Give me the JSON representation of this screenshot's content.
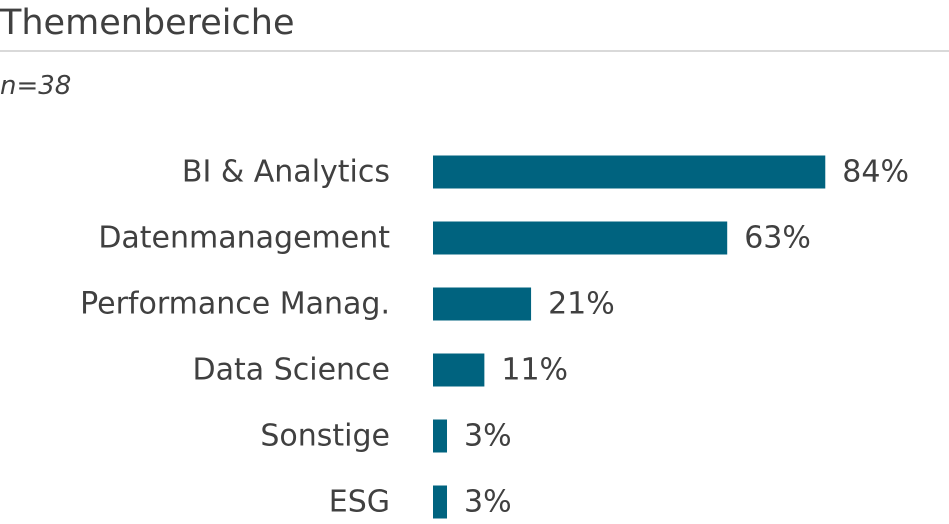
{
  "title": "Themenbereiche",
  "subtitle": "n=38",
  "chart_data": {
    "type": "bar",
    "orientation": "horizontal",
    "categories": [
      "BI & Analytics",
      "Datenmanagement",
      "Performance Manag.",
      "Data Science",
      "Sonstige",
      "ESG"
    ],
    "values": [
      84,
      63,
      21,
      11,
      3,
      3
    ],
    "value_labels": [
      "84%",
      "63%",
      "21%",
      "11%",
      "3%",
      "3%"
    ],
    "unit": "%",
    "xlim": [
      0,
      100
    ],
    "grid": false,
    "legend": "none",
    "bar_color": "#00637f",
    "text_color": "#404040"
  }
}
